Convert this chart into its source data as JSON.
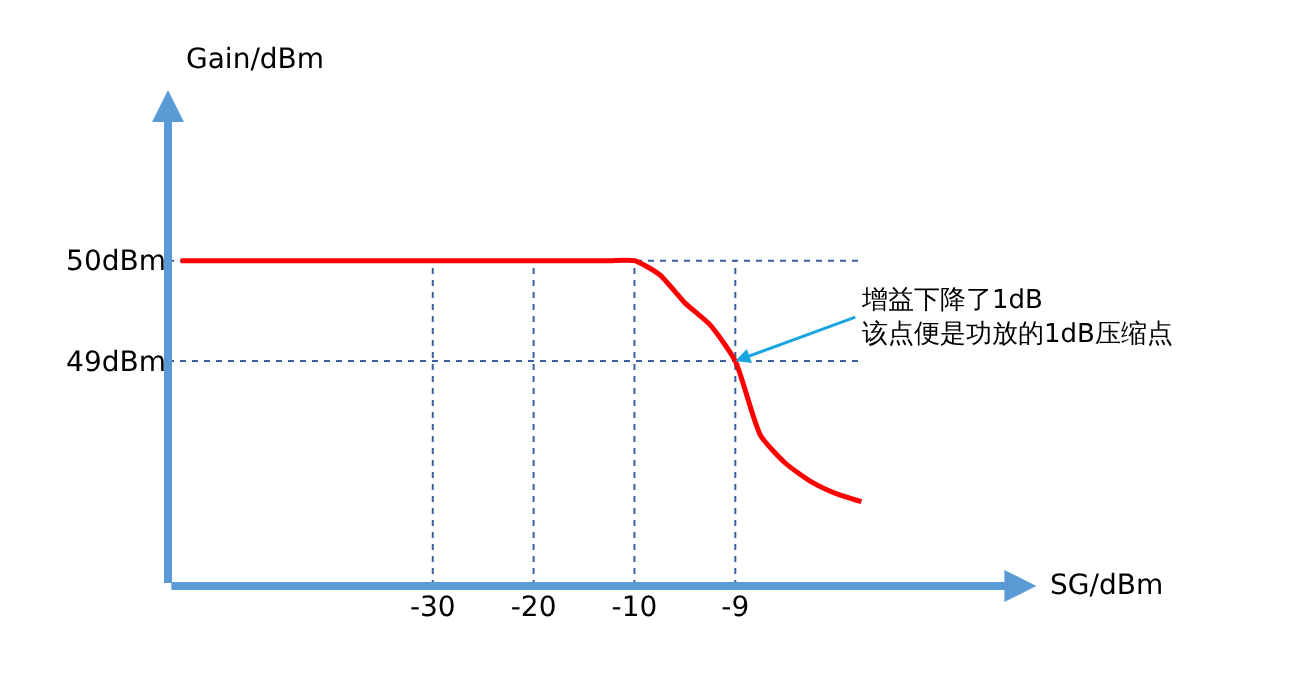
{
  "chart_data": {
    "type": "line",
    "ylabel": "Gain/dBm",
    "categories": [
      null,
      null,
      null,
      null,
      null,
      null,
      null,
      null,
      null,
      null,
      "-30",
      null,
      null,
      null,
      "-20",
      null,
      null,
      null,
      "-10",
      null,
      null,
      null,
      "-9",
      null,
      null,
      null,
      null,
      null
    ],
    "series": [
      {
        "color": "#ff0000",
        "values": [
          50,
          50,
          50,
          50,
          50,
          50,
          50,
          50,
          50,
          50,
          50,
          50,
          50,
          50,
          50,
          50,
          50,
          50,
          50,
          49.86,
          49.58,
          49.36,
          49,
          48.26,
          47.98,
          47.8,
          47.68,
          47.6
        ]
      }
    ],
    "ylim": [
      46.76,
      51.7
    ],
    "yticks": [
      {
        "value": 50,
        "label": "50dBm"
      },
      {
        "value": 49,
        "label": "49dBm"
      }
    ],
    "ref_lines": [
      {
        "axis": "y",
        "value": 50,
        "color": "#3b5f99",
        "line_style": "dotted"
      },
      {
        "axis": "y",
        "value": 49,
        "color": "#3b5f99",
        "line_style": "dotted"
      },
      {
        "axis": "x",
        "value": "-30",
        "color": "#3b5f99",
        "line_style": "dotted"
      },
      {
        "axis": "x",
        "value": "-20",
        "color": "#3b5f99",
        "line_style": "dotted"
      },
      {
        "axis": "x",
        "value": "-10",
        "color": "#3b5f99",
        "line_style": "dotted"
      },
      {
        "axis": "x",
        "value": "-9",
        "color": "#3b5f99",
        "line_style": "dotted"
      }
    ],
    "annotations": [
      {
        "text": "增益下降了1dB\n该点便是功放的1dB压缩点",
        "x": "-9",
        "y": 49
      },
      "SG/dBm"
    ],
    "marker": "none",
    "line_style": "solid"
  }
}
